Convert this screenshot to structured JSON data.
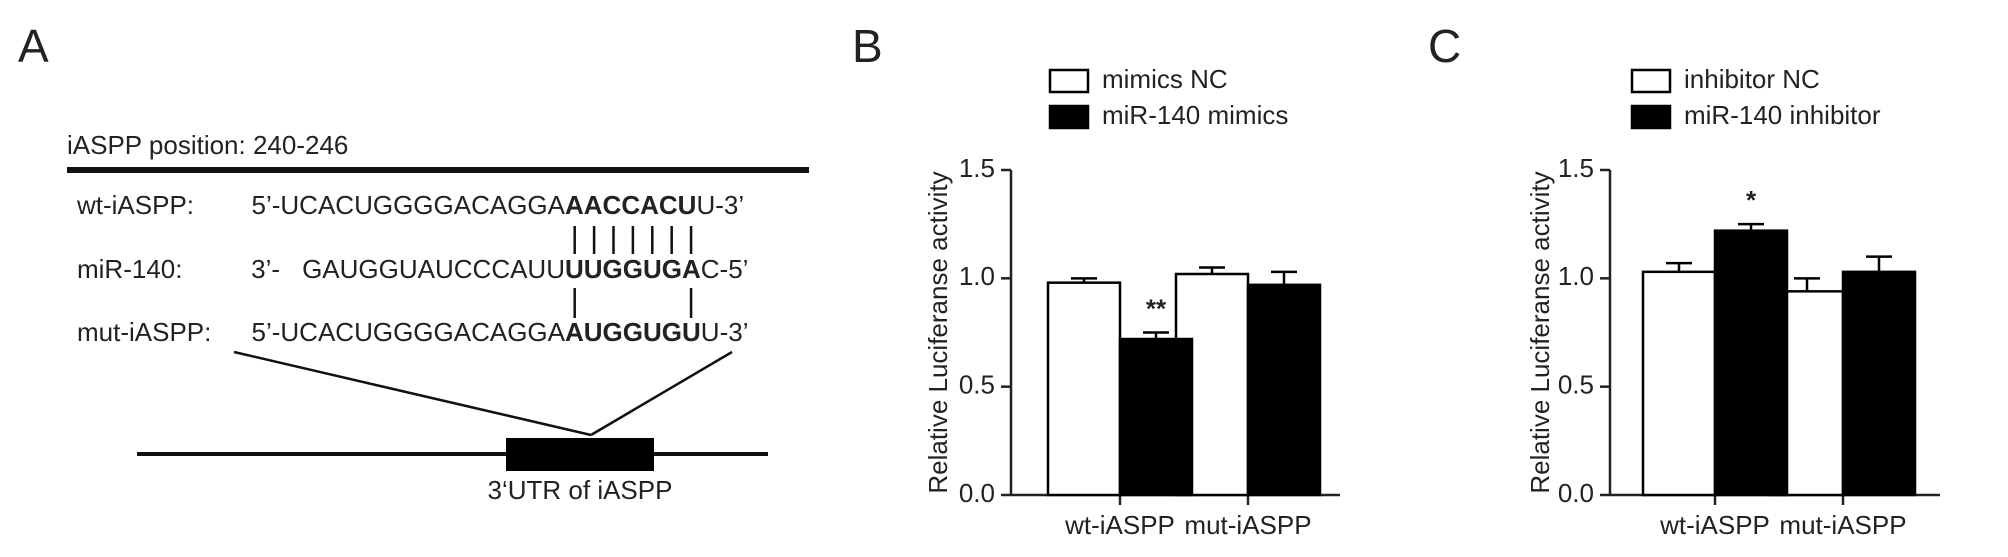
{
  "panel_labels": [
    "A",
    "B",
    "C"
  ],
  "diagram": {
    "title": "iASPP position: 240-246",
    "rows": [
      {
        "label": "wt-iASPP:",
        "parts": [
          {
            "text": "5’-UCACUGGGGACAGGA"
          },
          {
            "text": "AACCACU",
            "bold": true
          },
          {
            "text": "U-3’"
          }
        ]
      },
      {
        "label": "miR-140:",
        "parts": [
          {
            "text": "3’-"
          },
          {
            "text": "GAUGGUAUCCCAUU"
          },
          {
            "text": "UUGGUGA",
            "bold": true
          },
          {
            "text": "C-5’"
          }
        ]
      },
      {
        "label": "mut-iASPP:",
        "parts": [
          {
            "text": "5’-UCACUGGGGACAGGA"
          },
          {
            "text": "A",
            "bold": true
          },
          {
            "text": "UGGUG",
            "bold": true,
            "color": "#e8221f"
          },
          {
            "text": "U",
            "bold": true
          },
          {
            "text": "U-3’"
          }
        ]
      }
    ],
    "utr_label": "3‘UTR of iASPP"
  },
  "chart_data": [
    {
      "type": "bar",
      "categories": [
        "wt-iASPP",
        "mut-iASPP"
      ],
      "ylabel": "Relative Luciferanse activity",
      "ylim": [
        0,
        1.5
      ],
      "yticks": [
        {
          "value": 0,
          "label": "0.0"
        },
        {
          "value": 0.5,
          "label": "0.5"
        },
        {
          "value": 1,
          "label": "1.0"
        },
        {
          "value": 1.5,
          "label": "1.5"
        }
      ],
      "series": [
        {
          "name": "mimics NC",
          "color": "#ffffff",
          "values": [
            0.98,
            1.02
          ],
          "errors": [
            0.02,
            0.03
          ]
        },
        {
          "name": "miR-140 mimics",
          "color": "#000000",
          "values": [
            0.72,
            0.97
          ],
          "errors": [
            0.03,
            0.06
          ]
        }
      ],
      "annotations": [
        {
          "text": "**",
          "category": "wt-iASPP",
          "series": "miR-140 mimics"
        }
      ]
    },
    {
      "type": "bar",
      "categories": [
        "wt-iASPP",
        "mut-iASPP"
      ],
      "ylabel": "Relative Luciferanse activity",
      "ylim": [
        0,
        1.5
      ],
      "yticks": [
        {
          "value": 0,
          "label": "0.0"
        },
        {
          "value": 0.5,
          "label": "0.5"
        },
        {
          "value": 1,
          "label": "1.0"
        },
        {
          "value": 1.5,
          "label": "1.5"
        }
      ],
      "series": [
        {
          "name": "inhibitor NC",
          "color": "#ffffff",
          "values": [
            1.03,
            0.94
          ],
          "errors": [
            0.04,
            0.06
          ]
        },
        {
          "name": "miR-140 inhibitor",
          "color": "#000000",
          "values": [
            1.22,
            1.03
          ],
          "errors": [
            0.03,
            0.07
          ]
        }
      ],
      "annotations": [
        {
          "text": "*",
          "category": "wt-iASPP",
          "series": "miR-140 inhibitor"
        }
      ]
    }
  ]
}
